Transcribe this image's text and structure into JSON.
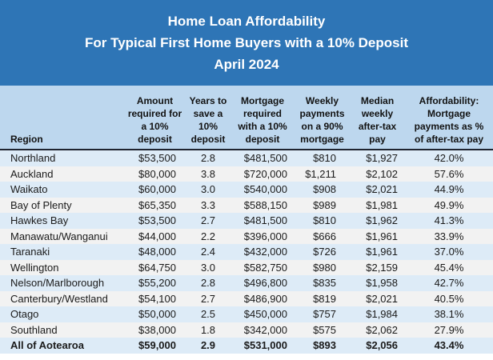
{
  "colors": {
    "band_blue": "#2E75B6",
    "header_blue": "#BDD7EE",
    "row_blue": "#DDEBF7",
    "row_gray": "#F2F2F2",
    "title_text": "#FFFFFF",
    "body_text": "#1A1A1A",
    "header_rule": "#1F2430"
  },
  "chart_data": {
    "type": "table",
    "title": "Home Loan Affordability",
    "subtitle": "For Typical First Home Buyers with a 10% Deposit",
    "period": "April 2024",
    "columns": [
      {
        "key": "region",
        "label": "Region"
      },
      {
        "key": "amount",
        "label": "Amount\nrequired for\na 10%\ndeposit"
      },
      {
        "key": "years",
        "label": "Years to\nsave a\n10%\ndeposit"
      },
      {
        "key": "mortgage",
        "label": "Mortgage\nrequired\nwith a 10%\ndeposit"
      },
      {
        "key": "weekly",
        "label": "Weekly\npayments\non a 90%\nmortgage"
      },
      {
        "key": "median",
        "label": "Median\nweekly\nafter-tax\npay"
      },
      {
        "key": "afford",
        "label": "Affordability:\nMortgage\npayments as %\nof after-tax pay"
      }
    ],
    "rows": [
      {
        "region": "Northland",
        "amount": "$53,500",
        "years": "2.8",
        "mortgage": "$481,500",
        "weekly": "$810",
        "median": "$1,927",
        "afford": "42.0%",
        "bold": false
      },
      {
        "region": "Auckland",
        "amount": "$80,000",
        "years": "3.8",
        "mortgage": "$720,000",
        "weekly": "$1,211",
        "median": "$2,102",
        "afford": "57.6%",
        "bold": false
      },
      {
        "region": "Waikato",
        "amount": "$60,000",
        "years": "3.0",
        "mortgage": "$540,000",
        "weekly": "$908",
        "median": "$2,021",
        "afford": "44.9%",
        "bold": false
      },
      {
        "region": "Bay of Plenty",
        "amount": "$65,350",
        "years": "3.3",
        "mortgage": "$588,150",
        "weekly": "$989",
        "median": "$1,981",
        "afford": "49.9%",
        "bold": false
      },
      {
        "region": "Hawkes Bay",
        "amount": "$53,500",
        "years": "2.7",
        "mortgage": "$481,500",
        "weekly": "$810",
        "median": "$1,962",
        "afford": "41.3%",
        "bold": false
      },
      {
        "region": "Manawatu/Wanganui",
        "amount": "$44,000",
        "years": "2.2",
        "mortgage": "$396,000",
        "weekly": "$666",
        "median": "$1,961",
        "afford": "33.9%",
        "bold": false
      },
      {
        "region": "Taranaki",
        "amount": "$48,000",
        "years": "2.4",
        "mortgage": "$432,000",
        "weekly": "$726",
        "median": "$1,961",
        "afford": "37.0%",
        "bold": false
      },
      {
        "region": "Wellington",
        "amount": "$64,750",
        "years": "3.0",
        "mortgage": "$582,750",
        "weekly": "$980",
        "median": "$2,159",
        "afford": "45.4%",
        "bold": false
      },
      {
        "region": "Nelson/Marlborough",
        "amount": "$55,200",
        "years": "2.8",
        "mortgage": "$496,800",
        "weekly": "$835",
        "median": "$1,958",
        "afford": "42.7%",
        "bold": false
      },
      {
        "region": "Canterbury/Westland",
        "amount": "$54,100",
        "years": "2.7",
        "mortgage": "$486,900",
        "weekly": "$819",
        "median": "$2,021",
        "afford": "40.5%",
        "bold": false
      },
      {
        "region": "Otago",
        "amount": "$50,000",
        "years": "2.5",
        "mortgage": "$450,000",
        "weekly": "$757",
        "median": "$1,984",
        "afford": "38.1%",
        "bold": false
      },
      {
        "region": "Southland",
        "amount": "$38,000",
        "years": "1.8",
        "mortgage": "$342,000",
        "weekly": "$575",
        "median": "$2,062",
        "afford": "27.9%",
        "bold": false
      },
      {
        "region": "All of Aotearoa",
        "amount": "$59,000",
        "years": "2.9",
        "mortgage": "$531,000",
        "weekly": "$893",
        "median": "$2,056",
        "afford": "43.4%",
        "bold": true
      }
    ]
  }
}
